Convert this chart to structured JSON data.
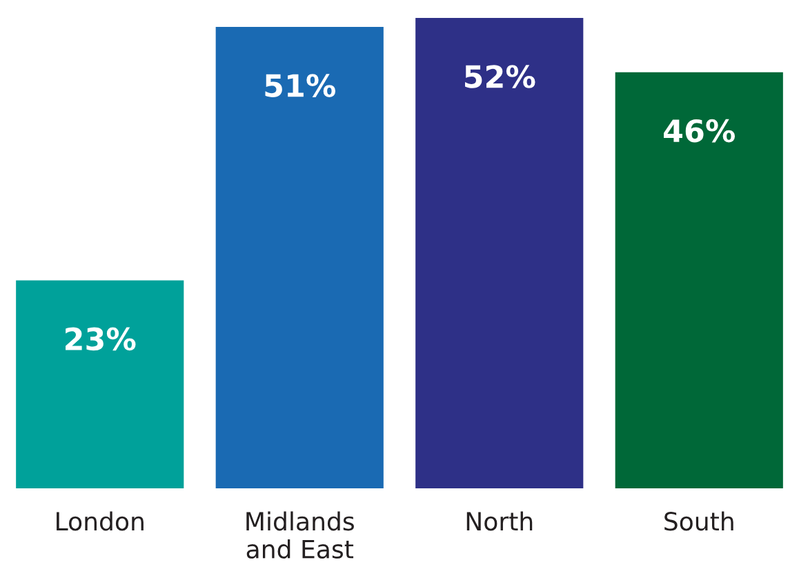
{
  "chart_data": {
    "type": "bar",
    "categories": [
      "London",
      "Midlands\nand East",
      "North",
      "South"
    ],
    "values": [
      23,
      51,
      52,
      46
    ],
    "colors": [
      "#00a19a",
      "#1a6ab3",
      "#2e3087",
      "#006838"
    ],
    "value_labels": [
      "23%",
      "51%",
      "52%",
      "46%"
    ]
  }
}
